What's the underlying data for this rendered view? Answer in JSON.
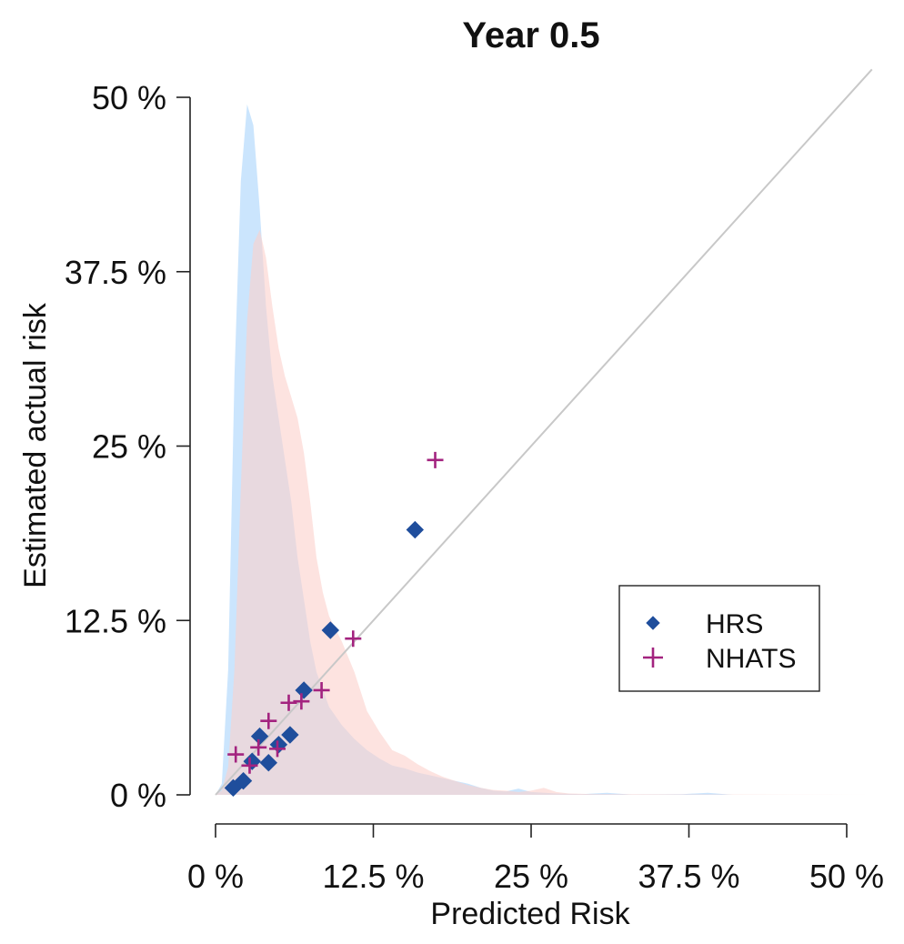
{
  "chart_data": {
    "type": "scatter",
    "title": "Year 0.5",
    "xlabel": "Predicted Risk",
    "ylabel": "Estimated actual risk",
    "xlim": [
      0,
      50
    ],
    "ylim": [
      0,
      50
    ],
    "x_ticks": [
      0,
      12.5,
      25,
      37.5,
      50
    ],
    "y_ticks": [
      0,
      12.5,
      25,
      37.5,
      50
    ],
    "x_tick_labels": [
      "0 %",
      "12.5 %",
      "25 %",
      "37.5 %",
      "50 %"
    ],
    "y_tick_labels": [
      "0 %",
      "12.5 %",
      "25 %",
      "37.5 %",
      "50 %"
    ],
    "reference_line": {
      "from": [
        0,
        0
      ],
      "to": [
        52,
        52
      ],
      "color": "#c8c8c8"
    },
    "legend_position": "right",
    "series": [
      {
        "name": "HRS",
        "marker": "diamond",
        "color": "#1f4e9c",
        "points": [
          [
            1.4,
            0.5
          ],
          [
            2.2,
            1.0
          ],
          [
            2.9,
            2.4
          ],
          [
            3.5,
            4.2
          ],
          [
            4.2,
            2.3
          ],
          [
            5.0,
            3.6
          ],
          [
            5.9,
            4.3
          ],
          [
            7.0,
            7.5
          ],
          [
            9.1,
            11.8
          ],
          [
            15.8,
            19.0
          ]
        ]
      },
      {
        "name": "NHATS",
        "marker": "plus",
        "color": "#a3237f",
        "points": [
          [
            1.6,
            2.9
          ],
          [
            2.7,
            2.1
          ],
          [
            3.4,
            3.4
          ],
          [
            4.2,
            5.3
          ],
          [
            4.9,
            3.3
          ],
          [
            5.8,
            6.6
          ],
          [
            6.8,
            6.7
          ],
          [
            8.4,
            7.5
          ],
          [
            10.9,
            11.2
          ],
          [
            17.4,
            24.0
          ]
        ]
      }
    ],
    "density_distributions": [
      {
        "series": "HRS",
        "color": "#a9d3fb",
        "opacity": 0.6,
        "points": [
          [
            0,
            0
          ],
          [
            0.5,
            0.8
          ],
          [
            1.0,
            9.0
          ],
          [
            1.5,
            30.0
          ],
          [
            2.0,
            44.0
          ],
          [
            2.5,
            49.5
          ],
          [
            3.0,
            48.0
          ],
          [
            3.5,
            42.0
          ],
          [
            4.0,
            35.0
          ],
          [
            4.5,
            30.0
          ],
          [
            5.0,
            27.0
          ],
          [
            5.5,
            24.0
          ],
          [
            6.0,
            21.0
          ],
          [
            6.5,
            17.0
          ],
          [
            7.0,
            14.0
          ],
          [
            7.5,
            11.0
          ],
          [
            8.0,
            8.8
          ],
          [
            9.0,
            6.3
          ],
          [
            10.0,
            5.0
          ],
          [
            11.0,
            4.0
          ],
          [
            12.0,
            3.2
          ],
          [
            13.0,
            2.6
          ],
          [
            14.0,
            2.1
          ],
          [
            15.0,
            1.9
          ],
          [
            16.0,
            1.6
          ],
          [
            17.0,
            1.4
          ],
          [
            18.0,
            1.2
          ],
          [
            19.0,
            1.0
          ],
          [
            20.0,
            0.8
          ],
          [
            21.0,
            0.5
          ],
          [
            22.0,
            0.3
          ],
          [
            23.0,
            0.25
          ],
          [
            24.0,
            0.45
          ],
          [
            25.0,
            0.2
          ],
          [
            27.0,
            0.1
          ],
          [
            29.0,
            0.05
          ],
          [
            31.0,
            0.15
          ],
          [
            33.0,
            0.02
          ],
          [
            37.0,
            0.05
          ],
          [
            39.0,
            0.15
          ],
          [
            41.0,
            0.0
          ],
          [
            52.0,
            0.0
          ]
        ]
      },
      {
        "series": "NHATS",
        "color": "#fbd0cb",
        "opacity": 0.6,
        "points": [
          [
            0,
            0
          ],
          [
            0.5,
            0.3
          ],
          [
            1.0,
            2.0
          ],
          [
            1.5,
            9.0
          ],
          [
            2.0,
            22.0
          ],
          [
            2.5,
            34.0
          ],
          [
            3.0,
            39.5
          ],
          [
            3.5,
            40.5
          ],
          [
            4.0,
            38.5
          ],
          [
            4.5,
            35.0
          ],
          [
            5.0,
            32.0
          ],
          [
            5.5,
            30.0
          ],
          [
            6.0,
            28.5
          ],
          [
            6.5,
            27.0
          ],
          [
            7.0,
            24.5
          ],
          [
            7.5,
            21.0
          ],
          [
            8.0,
            17.0
          ],
          [
            8.5,
            14.5
          ],
          [
            9.0,
            12.8
          ],
          [
            10.0,
            11.0
          ],
          [
            11.0,
            8.8
          ],
          [
            12.0,
            6.0
          ],
          [
            13.0,
            4.5
          ],
          [
            14.0,
            3.2
          ],
          [
            15.0,
            2.8
          ],
          [
            16.0,
            2.2
          ],
          [
            17.0,
            1.7
          ],
          [
            18.0,
            1.3
          ],
          [
            19.0,
            1.0
          ],
          [
            20.0,
            0.7
          ],
          [
            21.0,
            0.5
          ],
          [
            22.0,
            0.35
          ],
          [
            23.0,
            0.3
          ],
          [
            24.0,
            0.2
          ],
          [
            25.0,
            0.3
          ],
          [
            26.0,
            0.5
          ],
          [
            27.0,
            0.2
          ],
          [
            28.0,
            0.1
          ],
          [
            30.0,
            0.05
          ],
          [
            52.0,
            0.0
          ]
        ]
      }
    ],
    "legend": [
      {
        "label": "HRS",
        "marker": "diamond",
        "color": "#1f4e9c"
      },
      {
        "label": "NHATS",
        "marker": "plus",
        "color": "#a3237f"
      }
    ]
  }
}
